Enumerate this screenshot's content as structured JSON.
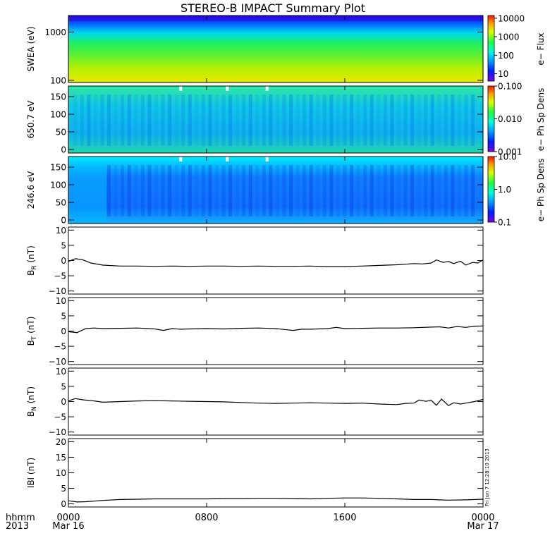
{
  "title": "STEREO-B IMPACT Summary Plot",
  "stamp": "Fri Jun  7 12:28:10 2013",
  "time_axis": {
    "row_label_top": "hhmm",
    "row_label_bottom": "2013",
    "ticks": [
      {
        "hour": 0,
        "label": "0000",
        "date": "Mar 16"
      },
      {
        "hour": 8,
        "label": "0800",
        "date": ""
      },
      {
        "hour": 16,
        "label": "1600",
        "date": ""
      },
      {
        "hour": 24,
        "label": "0000",
        "date": "Mar 17"
      }
    ],
    "range_hours": [
      0,
      24
    ]
  },
  "chart_data": [
    {
      "type": "heatmap",
      "ylabel": "SWEA (eV)",
      "yscale": "log",
      "ylim": [
        90,
        2200
      ],
      "yticks": [
        {
          "v": 100,
          "label": "100"
        },
        {
          "v": 1000,
          "label": "1000"
        }
      ],
      "colorbar": {
        "label": "e− Flux",
        "scale": "log",
        "range": [
          4,
          14000
        ],
        "ticks": [
          {
            "v": 10000,
            "label": "10000"
          },
          {
            "v": 1000,
            "label": "1000"
          },
          {
            "v": 100,
            "label": "100"
          },
          {
            "v": 10,
            "label": "10"
          }
        ]
      }
    },
    {
      "type": "heatmap",
      "ylabel": "650.7 eV",
      "ylim": [
        -10,
        180
      ],
      "yticks": [
        {
          "v": 0,
          "label": "0"
        },
        {
          "v": 50,
          "label": "50"
        },
        {
          "v": 100,
          "label": "100"
        },
        {
          "v": 150,
          "label": "150"
        }
      ],
      "colorbar": {
        "label": "e− Ph Sp Dens",
        "scale": "log",
        "range": [
          0.001,
          0.1
        ],
        "ticks": [
          {
            "v": 0.1,
            "label": "0.100"
          },
          {
            "v": 0.01,
            "label": "0.010"
          },
          {
            "v": 0.001,
            "label": "0.001"
          }
        ]
      }
    },
    {
      "type": "heatmap",
      "ylabel": "246.6 eV",
      "ylim": [
        -10,
        180
      ],
      "yticks": [
        {
          "v": 0,
          "label": "0"
        },
        {
          "v": 50,
          "label": "50"
        },
        {
          "v": 100,
          "label": "100"
        },
        {
          "v": 150,
          "label": "150"
        }
      ],
      "colorbar": {
        "label": "e− Ph Sp Dens",
        "scale": "log",
        "range": [
          0.1,
          10
        ],
        "ticks": [
          {
            "v": 10,
            "label": "10.0"
          },
          {
            "v": 1,
            "label": "1.0"
          },
          {
            "v": 0.1,
            "label": "0.1"
          }
        ]
      }
    },
    {
      "type": "line",
      "ylabel": "B",
      "ylabel_sub": "R",
      "ylabel_unit": "(nT)",
      "ylim": [
        -11,
        11
      ],
      "yticks": [
        {
          "v": 10,
          "label": "10"
        },
        {
          "v": 5,
          "label": "5"
        },
        {
          "v": 0,
          "label": "0"
        },
        {
          "v": -5,
          "label": "−5"
        },
        {
          "v": -10,
          "label": "−10"
        }
      ],
      "x": [
        0,
        0.4,
        0.8,
        1.3,
        2,
        3,
        4,
        5,
        6,
        7,
        8,
        9,
        10,
        11,
        12,
        13,
        14,
        15,
        16,
        17,
        18,
        19,
        19.5,
        20,
        20.5,
        21,
        21.3,
        21.7,
        22,
        22.3,
        22.7,
        23,
        23.4,
        23.7,
        24
      ],
      "y": [
        -0.3,
        0.6,
        0.3,
        -0.8,
        -1.5,
        -1.8,
        -1.8,
        -1.9,
        -1.8,
        -1.9,
        -1.8,
        -1.8,
        -1.9,
        -1.8,
        -1.9,
        -1.9,
        -1.8,
        -2.0,
        -2.0,
        -1.8,
        -1.6,
        -1.4,
        -1.2,
        -1.0,
        -1.1,
        -0.8,
        0.2,
        -0.6,
        -0.3,
        -1.0,
        -0.2,
        -1.5,
        -0.6,
        -0.8,
        0.2
      ]
    },
    {
      "type": "line",
      "ylabel": "B",
      "ylabel_sub": "T",
      "ylabel_unit": "(nT)",
      "ylim": [
        -11,
        11
      ],
      "yticks": [
        {
          "v": 10,
          "label": "10"
        },
        {
          "v": 5,
          "label": "5"
        },
        {
          "v": 0,
          "label": "0"
        },
        {
          "v": -5,
          "label": "−5"
        },
        {
          "v": -10,
          "label": "−10"
        }
      ],
      "x": [
        0,
        0.5,
        1,
        1.5,
        2,
        3,
        4,
        5,
        5.5,
        6,
        6.5,
        7,
        8,
        9,
        10,
        11,
        12,
        12.5,
        13,
        13.5,
        14,
        15,
        15.5,
        16,
        17,
        18,
        19,
        20,
        21,
        21.5,
        22,
        22.5,
        23,
        23.5,
        24
      ],
      "y": [
        -0.2,
        -0.5,
        0.8,
        1.0,
        0.8,
        0.9,
        1.0,
        0.7,
        0.2,
        0.8,
        0.6,
        0.7,
        0.8,
        0.7,
        0.9,
        1.0,
        0.8,
        0.5,
        0.2,
        0.6,
        0.6,
        0.8,
        1.2,
        0.8,
        0.9,
        1.0,
        1.0,
        1.1,
        1.3,
        1.4,
        1.0,
        1.5,
        1.2,
        1.6,
        1.7
      ]
    },
    {
      "type": "line",
      "ylabel": "B",
      "ylabel_sub": "N",
      "ylabel_unit": "(nT)",
      "ylim": [
        -11,
        11
      ],
      "yticks": [
        {
          "v": 10,
          "label": "10"
        },
        {
          "v": 5,
          "label": "5"
        },
        {
          "v": 0,
          "label": "0"
        },
        {
          "v": -5,
          "label": "−5"
        },
        {
          "v": -10,
          "label": "−10"
        }
      ],
      "x": [
        0,
        0.4,
        0.8,
        1.5,
        2,
        3,
        4,
        5,
        6,
        7,
        8,
        9,
        10,
        11,
        12,
        13,
        14,
        15,
        16,
        17,
        18,
        19,
        19.5,
        20,
        20.3,
        20.7,
        21,
        21.3,
        21.6,
        22,
        22.3,
        22.7,
        23,
        23.5,
        24
      ],
      "y": [
        0.2,
        1.0,
        0.6,
        0.2,
        -0.2,
        0.0,
        0.2,
        0.3,
        0.2,
        0.1,
        0.0,
        -0.1,
        -0.3,
        -0.5,
        -0.6,
        -0.5,
        -0.4,
        -0.5,
        -0.6,
        -0.5,
        -0.8,
        -1.0,
        -0.6,
        -0.5,
        0.5,
        0.1,
        0.4,
        -1.2,
        0.8,
        -1.3,
        -0.4,
        -0.8,
        -0.5,
        0.0,
        0.7
      ]
    },
    {
      "type": "line",
      "ylabel": "IBI (nT)",
      "ylim": [
        -1,
        21
      ],
      "yticks": [
        {
          "v": 20,
          "label": "20"
        },
        {
          "v": 15,
          "label": "15"
        },
        {
          "v": 10,
          "label": "10"
        },
        {
          "v": 5,
          "label": "5"
        },
        {
          "v": 0,
          "label": "0"
        }
      ],
      "x": [
        0,
        0.5,
        1,
        2,
        3,
        4,
        5,
        6,
        7,
        8,
        9,
        10,
        11,
        12,
        13,
        14,
        15,
        16,
        17,
        18,
        19,
        20,
        21,
        21.5,
        22,
        23,
        24
      ],
      "y": [
        1.0,
        0.6,
        0.7,
        1.1,
        1.4,
        1.5,
        1.6,
        1.6,
        1.6,
        1.6,
        1.7,
        1.7,
        1.8,
        1.8,
        1.7,
        1.6,
        1.8,
        1.9,
        1.9,
        1.8,
        1.6,
        1.4,
        1.4,
        1.3,
        1.2,
        1.3,
        1.5
      ]
    }
  ]
}
